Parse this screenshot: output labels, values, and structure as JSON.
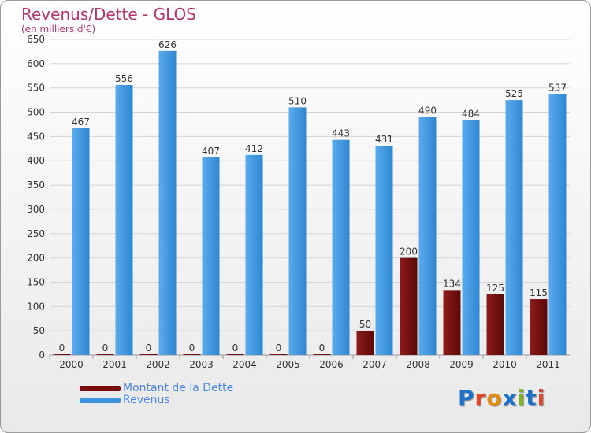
{
  "header": {
    "title": "Revenus/Dette - GLOS",
    "subtitle": "(en milliers d'€)"
  },
  "legend": {
    "items": [
      {
        "label": "Montant de la Dette",
        "color": "#7a0d0d"
      },
      {
        "label": "Revenus",
        "color": "#3d95de"
      }
    ]
  },
  "logo": {
    "text": "Proxiti",
    "colors": [
      "#1a73c9",
      "#e0462a",
      "#e38d13",
      "#1a73c9",
      "#7cb41d",
      "#1a73c9",
      "#e0462a"
    ]
  },
  "chart_data": {
    "type": "bar",
    "title": "Revenus/Dette - GLOS",
    "subtitle": "(en milliers d'€)",
    "categories": [
      "2000",
      "2001",
      "2002",
      "2003",
      "2004",
      "2005",
      "2006",
      "2007",
      "2008",
      "2009",
      "2010",
      "2011"
    ],
    "series": [
      {
        "name": "Montant de la Dette",
        "color": "#7a0d0d",
        "values": [
          0,
          0,
          0,
          0,
          0,
          0,
          0,
          50,
          200,
          134,
          125,
          115
        ]
      },
      {
        "name": "Revenus",
        "color": "#3d95de",
        "values": [
          467,
          556,
          626,
          407,
          412,
          510,
          443,
          431,
          490,
          484,
          525,
          537
        ]
      }
    ],
    "ylim": [
      0,
      650
    ],
    "yticks": [
      0,
      50,
      100,
      150,
      200,
      250,
      300,
      350,
      400,
      450,
      500,
      550,
      600,
      650
    ],
    "grid": true,
    "legend_position": "bottom-left"
  }
}
